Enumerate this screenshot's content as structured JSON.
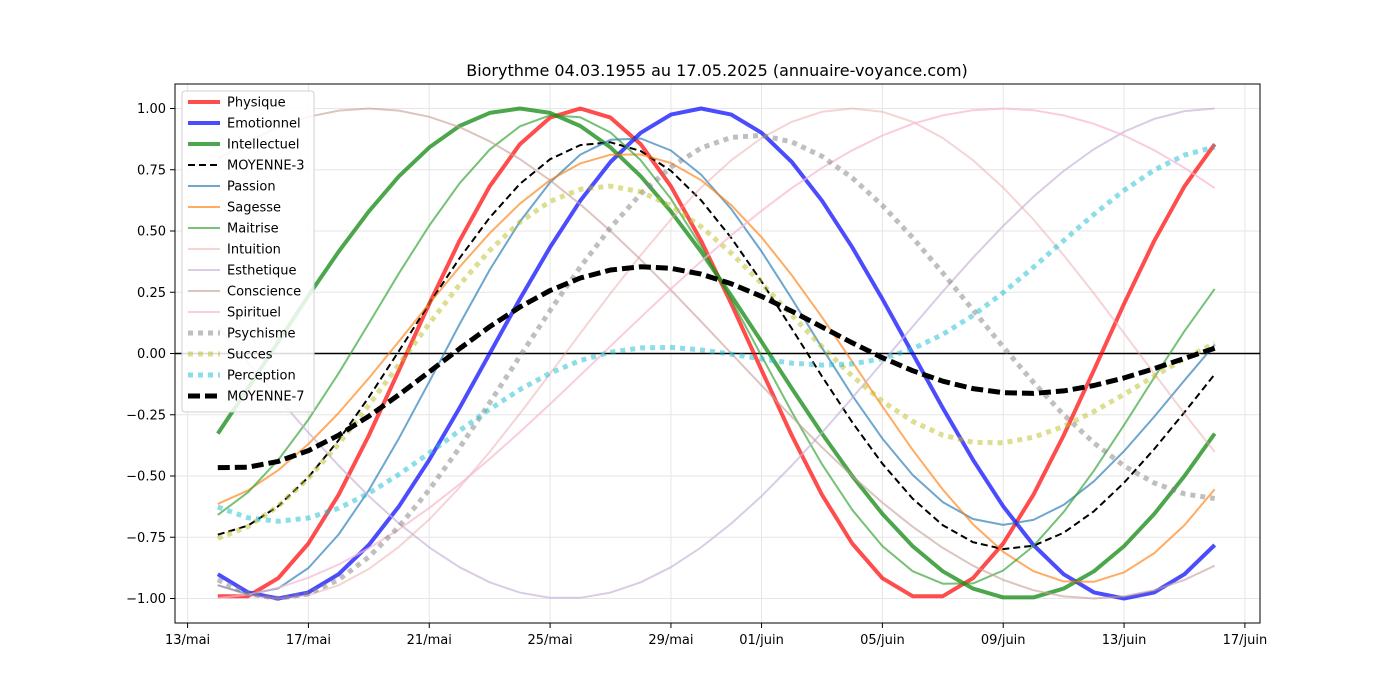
{
  "chart_data": {
    "type": "line",
    "title": "Biorythme 04.03.1955 au 17.05.2025 (annuaire-voyance.com)",
    "xlabel": "",
    "ylabel": "",
    "x_start": "2025-05-14",
    "x_end": "2025-06-16",
    "x_ticks": [
      {
        "date": "2025-05-13",
        "label": "13/mai"
      },
      {
        "date": "2025-05-17",
        "label": "17/mai"
      },
      {
        "date": "2025-05-21",
        "label": "21/mai"
      },
      {
        "date": "2025-05-25",
        "label": "25/mai"
      },
      {
        "date": "2025-05-29",
        "label": "29/mai"
      },
      {
        "date": "2025-06-01",
        "label": "01/juin"
      },
      {
        "date": "2025-06-05",
        "label": "05/juin"
      },
      {
        "date": "2025-06-09",
        "label": "09/juin"
      },
      {
        "date": "2025-06-13",
        "label": "13/juin"
      },
      {
        "date": "2025-06-17",
        "label": "17/juin"
      }
    ],
    "y_ticks": [
      "1.00",
      "0.75",
      "0.50",
      "0.25",
      "0.00",
      "−0.25",
      "−0.50",
      "−0.75",
      "−1.00"
    ],
    "ylim": [
      -1.1,
      1.1
    ],
    "grid": true,
    "legend_position": "top-left",
    "series": [
      {
        "name": "Physique",
        "color": "#ff0000",
        "opacity": 0.7,
        "dash": "solid",
        "width": 4,
        "amplitude": 1,
        "period": 23,
        "phase_day": 26
      },
      {
        "name": "Emotionnel",
        "color": "#0000ff",
        "opacity": 0.7,
        "dash": "solid",
        "width": 4,
        "amplitude": 1,
        "period": 28,
        "phase_day": 30
      },
      {
        "name": "Intellectuel",
        "color": "#008000",
        "opacity": 0.7,
        "dash": "solid",
        "width": 4,
        "amplitude": 1,
        "period": 33,
        "phase_day": 24
      },
      {
        "name": "MOYENNE-3",
        "color": "#000000",
        "opacity": 1,
        "dash": "dashed",
        "width": 2,
        "avg_of": [
          "Physique",
          "Emotionnel",
          "Intellectuel"
        ]
      },
      {
        "name": "Passion",
        "color": "#1f77b4",
        "opacity": 0.65,
        "dash": "solid",
        "width": 2,
        "avg_of": [
          "Physique",
          "Emotionnel"
        ]
      },
      {
        "name": "Sagesse",
        "color": "#ff7f0e",
        "opacity": 0.65,
        "dash": "solid",
        "width": 2,
        "avg_of": [
          "Emotionnel",
          "Intellectuel"
        ]
      },
      {
        "name": "Maitrise",
        "color": "#2ca02c",
        "opacity": 0.65,
        "dash": "solid",
        "width": 2,
        "avg_of": [
          "Physique",
          "Intellectuel"
        ]
      },
      {
        "name": "Intuition",
        "color": "#e377c2",
        "opacity": 0.45,
        "dash": "solid",
        "width": 2,
        "amplitude": 1,
        "period": 38,
        "phase_day": 35,
        "override_color": "#e8a0a0"
      },
      {
        "name": "Esthetique",
        "color": "#c5b0d5",
        "opacity": 0.65,
        "dash": "solid",
        "width": 2,
        "amplitude": 1,
        "period": 43,
        "phase_day": 4
      },
      {
        "name": "Conscience",
        "color": "#c49c94",
        "opacity": 0.6,
        "dash": "solid",
        "width": 2,
        "amplitude": 1,
        "period": 48,
        "phase_day": 19
      },
      {
        "name": "Spirituel",
        "color": "#f7b6d2",
        "opacity": 0.7,
        "dash": "solid",
        "width": 2,
        "amplitude": 1,
        "period": 53,
        "phase_day": 40
      },
      {
        "name": "Psychisme",
        "color": "#7f7f7f",
        "opacity": 0.5,
        "dash": "dotted",
        "width": 5,
        "avg_of": [
          "Intuition",
          "Emotionnel"
        ]
      },
      {
        "name": "Succes",
        "color": "#bcbd22",
        "opacity": 0.5,
        "dash": "dotted",
        "width": 5,
        "avg_of": [
          "Intuition",
          "Physique",
          "Intellectuel"
        ]
      },
      {
        "name": "Perception",
        "color": "#17becf",
        "opacity": 0.5,
        "dash": "dotted",
        "width": 5,
        "avg_of": [
          "Physique",
          "Esthetique",
          "Spirituel"
        ]
      },
      {
        "name": "MOYENNE-7",
        "color": "#000000",
        "opacity": 1,
        "dash": "dashed-thick",
        "width": 5,
        "avg_of": [
          "Physique",
          "Emotionnel",
          "Intellectuel",
          "Intuition",
          "Esthetique",
          "Conscience",
          "Spirituel"
        ]
      }
    ]
  }
}
